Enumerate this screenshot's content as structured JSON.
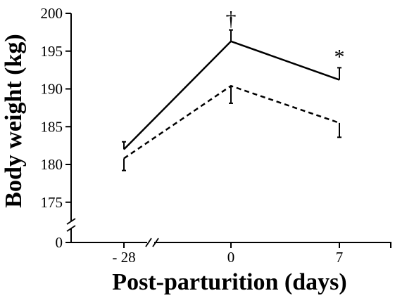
{
  "chart_data": {
    "type": "line",
    "xlabel": "Post-parturition (days)",
    "ylabel": "Body weight (kg)",
    "categories": [
      "- 28",
      "0",
      "7"
    ],
    "y_ticks": [
      0,
      175,
      180,
      185,
      190,
      195,
      200
    ],
    "ylim": [
      172.5,
      200
    ],
    "y_axis_break": true,
    "x_axis_break": true,
    "legend": "none",
    "series": [
      {
        "style": "solid",
        "values": [
          182.0,
          196.3,
          191.2
        ],
        "error_upper": [
          183.0,
          197.8,
          192.8
        ],
        "annotations": [
          "",
          "†",
          "*"
        ]
      },
      {
        "style": "dashed",
        "values": [
          180.8,
          190.4,
          185.5
        ],
        "error_lower": [
          179.2,
          188.1,
          183.6
        ],
        "annotations": [
          "",
          "",
          ""
        ]
      }
    ]
  }
}
